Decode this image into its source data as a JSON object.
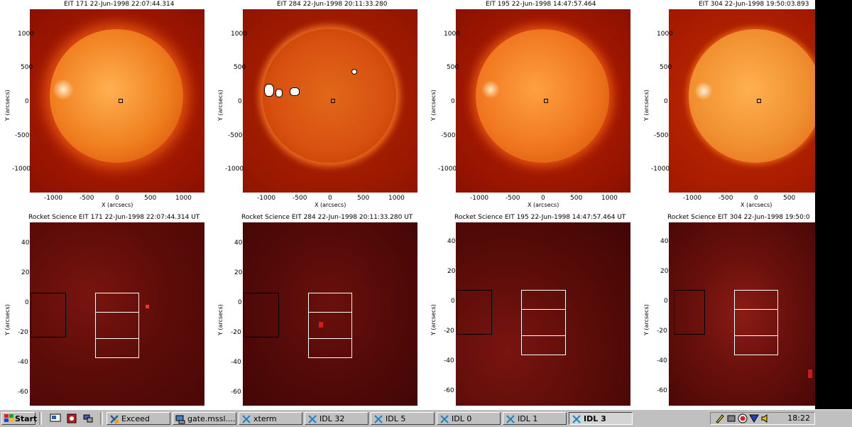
{
  "panels_top": [
    {
      "title": "EIT 171 22-Jun-1998 22:07:44.314"
    },
    {
      "title": "EIT 284 22-Jun-1998 20:11:33.280"
    },
    {
      "title": "EIT 195 22-Jun-1998 14:47:57.464"
    },
    {
      "title": "EIT 304 22-Jun-1998 19:50:03.893"
    }
  ],
  "panels_bottom": [
    {
      "title": "Rocket Science EIT 171 22-Jun-1998 22:07:44.314 UT"
    },
    {
      "title": "Rocket Science EIT 284 22-Jun-1998 20:11:33.280 UT"
    },
    {
      "title": "Rocket Science EIT 195 22-Jun-1998 14:47:57.464 UT"
    },
    {
      "title": "Rocket Science EIT 304 22-Jun-1998 19:50:0"
    }
  ],
  "top_axes": {
    "xlabel": "X (arcsecs)",
    "ylabel": "Y (arcsecs)",
    "xticks": [
      "-1000",
      "-500",
      "0",
      "500",
      "1000"
    ],
    "yticks": [
      "1000",
      "500",
      "0",
      "-500",
      "-1000"
    ]
  },
  "bottom_axes": {
    "ylabel": "Y (arcsecs)",
    "yticks": [
      "40",
      "20",
      "0",
      "-20",
      "-40",
      "-60"
    ]
  },
  "colors": {
    "sun_171": "#f08020",
    "sun_284": "#e05a10",
    "sun_195": "#f07820",
    "sun_304": "#f09030",
    "zoom_bg": "#6a0a0a",
    "background_red": "#c02000"
  },
  "taskbar": {
    "start_label": "Start",
    "buttons": [
      {
        "label": "Exceed",
        "icon": "exceed-icon"
      },
      {
        "label": "gate.mssl....",
        "icon": "computer-icon"
      },
      {
        "label": "xterm",
        "icon": "x-icon"
      },
      {
        "label": "IDL 32",
        "icon": "x-icon"
      },
      {
        "label": "IDL 5",
        "icon": "x-icon"
      },
      {
        "label": "IDL 0",
        "icon": "x-icon"
      },
      {
        "label": "IDL 1",
        "icon": "x-icon"
      },
      {
        "label": "IDL 3",
        "icon": "x-icon",
        "active": true
      }
    ],
    "clock": "18:22"
  }
}
